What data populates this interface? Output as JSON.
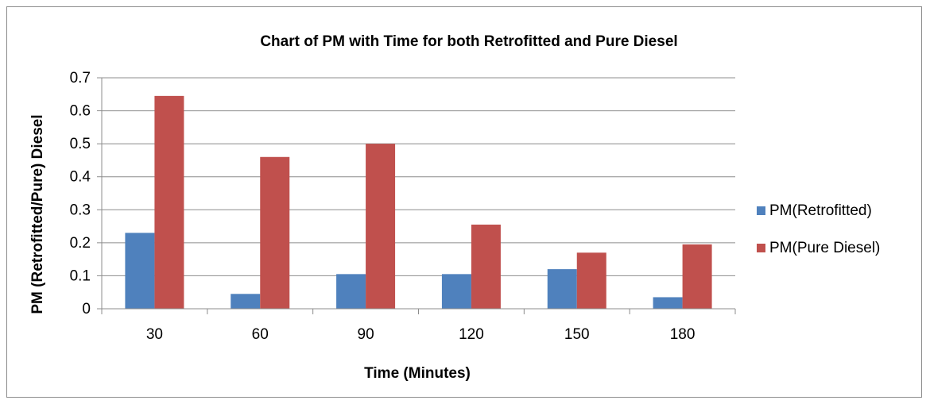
{
  "chart_data": {
    "type": "bar",
    "title": "Chart of PM with Time for both Retrofitted and Pure Diesel",
    "xlabel": "Time (Minutes)",
    "ylabel": "PM (Retrofitted/Pure) Diesel",
    "categories": [
      "30",
      "60",
      "90",
      "120",
      "150",
      "180"
    ],
    "series": [
      {
        "name": "PM(Retrofitted)",
        "color": "#4f81bd",
        "values": [
          0.23,
          0.045,
          0.105,
          0.105,
          0.12,
          0.035
        ]
      },
      {
        "name": "PM(Pure Diesel)",
        "color": "#c0504d",
        "values": [
          0.645,
          0.46,
          0.5,
          0.255,
          0.17,
          0.195
        ]
      }
    ],
    "ylim": [
      0,
      0.7
    ],
    "yticks": [
      "0",
      "0.1",
      "0.2",
      "0.3",
      "0.4",
      "0.5",
      "0.6",
      "0.7"
    ],
    "grid": true,
    "legend_position": "right"
  }
}
